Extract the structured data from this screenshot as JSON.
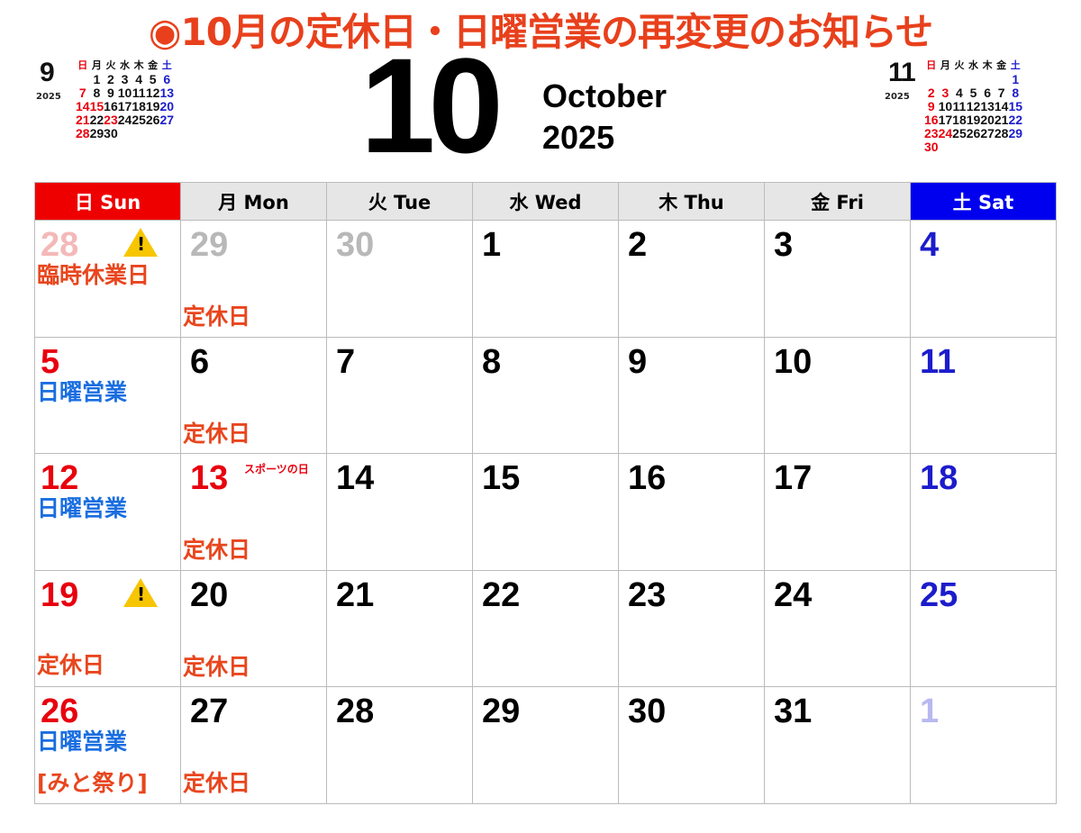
{
  "title": "◉10月の定休日・日曜営業の再変更のお知らせ",
  "month_number": "10",
  "month_name": "October",
  "year": "2025",
  "colors": {
    "title": "#e8401c",
    "sunday": "#e8000e",
    "saturday": "#1c1ccc",
    "notice_label": "#e8461e",
    "sunday_open_label": "#1a6ee0",
    "other_month": "#b8b8b8"
  },
  "prev_month": {
    "month": "9",
    "year": "2025",
    "weekdays": [
      "日",
      "月",
      "火",
      "水",
      "木",
      "金",
      "土"
    ],
    "weeks": [
      [
        "",
        "1",
        "2",
        "3",
        "4",
        "5",
        "6"
      ],
      [
        "7",
        "8",
        "9",
        "10",
        "11",
        "12",
        "13"
      ],
      [
        "14",
        "15",
        "16",
        "17",
        "18",
        "19",
        "20"
      ],
      [
        "21",
        "22",
        "23",
        "24",
        "25",
        "26",
        "27"
      ],
      [
        "28",
        "29",
        "30",
        "",
        "",
        "",
        ""
      ]
    ],
    "red": [
      "15",
      "23"
    ]
  },
  "next_month": {
    "month": "11",
    "year": "2025",
    "weekdays": [
      "日",
      "月",
      "火",
      "水",
      "木",
      "金",
      "土"
    ],
    "weeks": [
      [
        "",
        "",
        "",
        "",
        "",
        "",
        "1"
      ],
      [
        "2",
        "3",
        "4",
        "5",
        "6",
        "7",
        "8"
      ],
      [
        "9",
        "10",
        "11",
        "12",
        "13",
        "14",
        "15"
      ],
      [
        "16",
        "17",
        "18",
        "19",
        "20",
        "21",
        "22"
      ],
      [
        "23",
        "24",
        "25",
        "26",
        "27",
        "28",
        "29"
      ],
      [
        "30",
        "",
        "",
        "",
        "",
        "",
        ""
      ]
    ],
    "red": [
      "3",
      "24"
    ]
  },
  "weekday_headers": [
    "日 Sun",
    "月 Mon",
    "火 Tue",
    "水 Wed",
    "木 Thu",
    "金 Fri",
    "土 Sat"
  ],
  "days": [
    {
      "n": "28",
      "c": "#f4b8b8",
      "warn": true,
      "labels": [
        {
          "t": "臨時休業日",
          "c": "#e8461e",
          "pos": "top"
        }
      ]
    },
    {
      "n": "29",
      "c": "#b8b8b8",
      "labels": [
        {
          "t": "定休日",
          "c": "#e8461e",
          "pos": "bottom"
        }
      ]
    },
    {
      "n": "30",
      "c": "#b8b8b8"
    },
    {
      "n": "1",
      "c": "#000"
    },
    {
      "n": "2",
      "c": "#000"
    },
    {
      "n": "3",
      "c": "#000"
    },
    {
      "n": "4",
      "c": "#1c1ccc"
    },
    {
      "n": "5",
      "c": "#e8000e",
      "labels": [
        {
          "t": "日曜営業",
          "c": "#1a6ee0",
          "pos": "top"
        }
      ]
    },
    {
      "n": "6",
      "c": "#000",
      "labels": [
        {
          "t": "定休日",
          "c": "#e8461e",
          "pos": "bottom"
        }
      ]
    },
    {
      "n": "7",
      "c": "#000"
    },
    {
      "n": "8",
      "c": "#000"
    },
    {
      "n": "9",
      "c": "#000"
    },
    {
      "n": "10",
      "c": "#000"
    },
    {
      "n": "11",
      "c": "#1c1ccc"
    },
    {
      "n": "12",
      "c": "#e8000e",
      "labels": [
        {
          "t": "日曜営業",
          "c": "#1a6ee0",
          "pos": "top"
        }
      ]
    },
    {
      "n": "13",
      "c": "#e8000e",
      "holiday": "スポーツの日",
      "labels": [
        {
          "t": "定休日",
          "c": "#e8461e",
          "pos": "bottom"
        }
      ]
    },
    {
      "n": "14",
      "c": "#000"
    },
    {
      "n": "15",
      "c": "#000"
    },
    {
      "n": "16",
      "c": "#000"
    },
    {
      "n": "17",
      "c": "#000"
    },
    {
      "n": "18",
      "c": "#1c1ccc"
    },
    {
      "n": "19",
      "c": "#e8000e",
      "warn": true,
      "labels": [
        {
          "t": "定休日",
          "c": "#e8461e",
          "pos": "bottom2"
        }
      ]
    },
    {
      "n": "20",
      "c": "#000",
      "labels": [
        {
          "t": "定休日",
          "c": "#e8461e",
          "pos": "bottom"
        }
      ]
    },
    {
      "n": "21",
      "c": "#000"
    },
    {
      "n": "22",
      "c": "#000"
    },
    {
      "n": "23",
      "c": "#000"
    },
    {
      "n": "24",
      "c": "#000"
    },
    {
      "n": "25",
      "c": "#1c1ccc"
    },
    {
      "n": "26",
      "c": "#e8000e",
      "labels": [
        {
          "t": "日曜営業",
          "c": "#1a6ee0",
          "pos": "top"
        },
        {
          "t": "[みと祭り]",
          "c": "#e8461e",
          "pos": "bottom"
        }
      ]
    },
    {
      "n": "27",
      "c": "#000",
      "labels": [
        {
          "t": "定休日",
          "c": "#e8461e",
          "pos": "bottom"
        }
      ]
    },
    {
      "n": "28",
      "c": "#000"
    },
    {
      "n": "29",
      "c": "#000"
    },
    {
      "n": "30",
      "c": "#000"
    },
    {
      "n": "31",
      "c": "#000"
    },
    {
      "n": "1",
      "c": "#b8b8f0"
    }
  ]
}
